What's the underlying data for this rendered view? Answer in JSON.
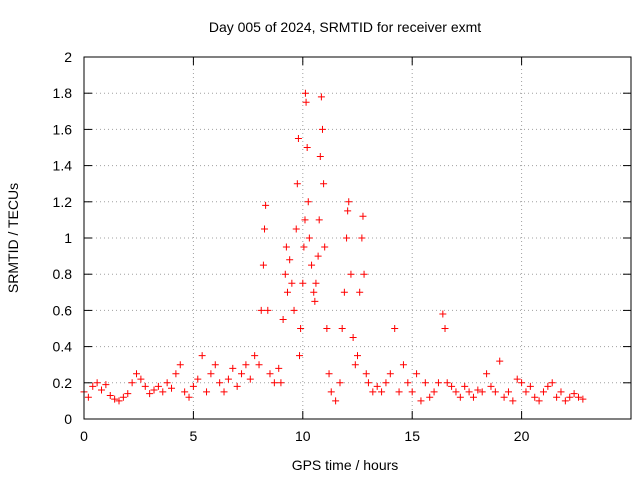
{
  "chart_data": {
    "type": "scatter",
    "title": "Day 005 of 2024, SRMTID for receiver exmt",
    "xlabel": "GPS time / hours",
    "ylabel": "SRMTID / TECUs",
    "xlim": [
      0,
      25
    ],
    "ylim": [
      0,
      2
    ],
    "xticks": [
      0,
      5,
      10,
      15,
      20
    ],
    "yticks": [
      0,
      0.2,
      0.4,
      0.6,
      0.8,
      1,
      1.2,
      1.4,
      1.6,
      1.8,
      2
    ],
    "grid": true,
    "marker": "+",
    "marker_color": "#ff0000",
    "series": [
      {
        "name": "SRMTID",
        "points": [
          [
            0.0,
            0.15
          ],
          [
            0.2,
            0.12
          ],
          [
            0.4,
            0.18
          ],
          [
            0.6,
            0.2
          ],
          [
            0.8,
            0.16
          ],
          [
            1.0,
            0.19
          ],
          [
            1.2,
            0.13
          ],
          [
            1.4,
            0.11
          ],
          [
            1.6,
            0.1
          ],
          [
            1.8,
            0.12
          ],
          [
            2.0,
            0.14
          ],
          [
            2.2,
            0.2
          ],
          [
            2.4,
            0.25
          ],
          [
            2.6,
            0.22
          ],
          [
            2.8,
            0.18
          ],
          [
            3.0,
            0.14
          ],
          [
            3.2,
            0.16
          ],
          [
            3.4,
            0.18
          ],
          [
            3.6,
            0.15
          ],
          [
            3.8,
            0.2
          ],
          [
            4.0,
            0.17
          ],
          [
            4.2,
            0.25
          ],
          [
            4.4,
            0.3
          ],
          [
            4.6,
            0.15
          ],
          [
            4.8,
            0.12
          ],
          [
            5.0,
            0.18
          ],
          [
            5.2,
            0.22
          ],
          [
            5.4,
            0.35
          ],
          [
            5.6,
            0.15
          ],
          [
            5.8,
            0.25
          ],
          [
            6.0,
            0.3
          ],
          [
            6.2,
            0.2
          ],
          [
            6.4,
            0.15
          ],
          [
            6.6,
            0.22
          ],
          [
            6.8,
            0.28
          ],
          [
            7.0,
            0.18
          ],
          [
            7.2,
            0.25
          ],
          [
            7.4,
            0.3
          ],
          [
            7.6,
            0.22
          ],
          [
            7.8,
            0.35
          ],
          [
            8.0,
            0.3
          ],
          [
            8.1,
            0.6
          ],
          [
            8.2,
            0.85
          ],
          [
            8.25,
            1.05
          ],
          [
            8.3,
            1.18
          ],
          [
            8.4,
            0.6
          ],
          [
            8.5,
            0.25
          ],
          [
            8.7,
            0.2
          ],
          [
            8.9,
            0.28
          ],
          [
            9.0,
            0.2
          ],
          [
            9.1,
            0.55
          ],
          [
            9.2,
            0.8
          ],
          [
            9.25,
            0.95
          ],
          [
            9.3,
            0.7
          ],
          [
            9.4,
            0.88
          ],
          [
            9.5,
            0.75
          ],
          [
            9.6,
            0.6
          ],
          [
            9.7,
            1.05
          ],
          [
            9.75,
            1.3
          ],
          [
            9.8,
            1.55
          ],
          [
            9.85,
            0.35
          ],
          [
            9.9,
            0.5
          ],
          [
            10.0,
            0.75
          ],
          [
            10.05,
            0.95
          ],
          [
            10.1,
            1.1
          ],
          [
            10.12,
            1.8
          ],
          [
            10.15,
            1.75
          ],
          [
            10.2,
            1.5
          ],
          [
            10.25,
            1.2
          ],
          [
            10.3,
            1.0
          ],
          [
            10.4,
            0.85
          ],
          [
            10.5,
            0.7
          ],
          [
            10.55,
            0.65
          ],
          [
            10.6,
            0.75
          ],
          [
            10.7,
            0.9
          ],
          [
            10.75,
            1.1
          ],
          [
            10.8,
            1.45
          ],
          [
            10.85,
            1.78
          ],
          [
            10.9,
            1.6
          ],
          [
            10.95,
            1.3
          ],
          [
            11.0,
            0.95
          ],
          [
            11.1,
            0.5
          ],
          [
            11.2,
            0.25
          ],
          [
            11.3,
            0.15
          ],
          [
            11.5,
            0.1
          ],
          [
            11.7,
            0.2
          ],
          [
            11.8,
            0.5
          ],
          [
            11.9,
            0.7
          ],
          [
            12.0,
            1.0
          ],
          [
            12.05,
            1.15
          ],
          [
            12.1,
            1.2
          ],
          [
            12.2,
            0.8
          ],
          [
            12.3,
            0.45
          ],
          [
            12.4,
            0.3
          ],
          [
            12.5,
            0.35
          ],
          [
            12.6,
            0.7
          ],
          [
            12.7,
            1.0
          ],
          [
            12.75,
            1.12
          ],
          [
            12.8,
            0.8
          ],
          [
            12.9,
            0.25
          ],
          [
            13.0,
            0.2
          ],
          [
            13.2,
            0.15
          ],
          [
            13.4,
            0.18
          ],
          [
            13.6,
            0.15
          ],
          [
            13.8,
            0.2
          ],
          [
            14.0,
            0.25
          ],
          [
            14.2,
            0.5
          ],
          [
            14.4,
            0.15
          ],
          [
            14.6,
            0.3
          ],
          [
            14.8,
            0.2
          ],
          [
            15.0,
            0.15
          ],
          [
            15.2,
            0.25
          ],
          [
            15.4,
            0.1
          ],
          [
            15.6,
            0.2
          ],
          [
            15.8,
            0.12
          ],
          [
            16.0,
            0.15
          ],
          [
            16.2,
            0.2
          ],
          [
            16.4,
            0.58
          ],
          [
            16.5,
            0.5
          ],
          [
            16.6,
            0.2
          ],
          [
            16.8,
            0.18
          ],
          [
            17.0,
            0.15
          ],
          [
            17.2,
            0.12
          ],
          [
            17.4,
            0.18
          ],
          [
            17.6,
            0.15
          ],
          [
            17.8,
            0.12
          ],
          [
            18.0,
            0.16
          ],
          [
            18.2,
            0.15
          ],
          [
            18.4,
            0.25
          ],
          [
            18.6,
            0.18
          ],
          [
            18.8,
            0.15
          ],
          [
            19.0,
            0.32
          ],
          [
            19.2,
            0.12
          ],
          [
            19.4,
            0.15
          ],
          [
            19.6,
            0.1
          ],
          [
            19.8,
            0.22
          ],
          [
            20.0,
            0.2
          ],
          [
            20.2,
            0.15
          ],
          [
            20.4,
            0.18
          ],
          [
            20.6,
            0.12
          ],
          [
            20.8,
            0.1
          ],
          [
            21.0,
            0.15
          ],
          [
            21.2,
            0.18
          ],
          [
            21.4,
            0.2
          ],
          [
            21.6,
            0.12
          ],
          [
            21.8,
            0.15
          ],
          [
            22.0,
            0.1
          ],
          [
            22.2,
            0.12
          ],
          [
            22.4,
            0.14
          ],
          [
            22.6,
            0.12
          ],
          [
            22.8,
            0.11
          ]
        ]
      }
    ]
  }
}
